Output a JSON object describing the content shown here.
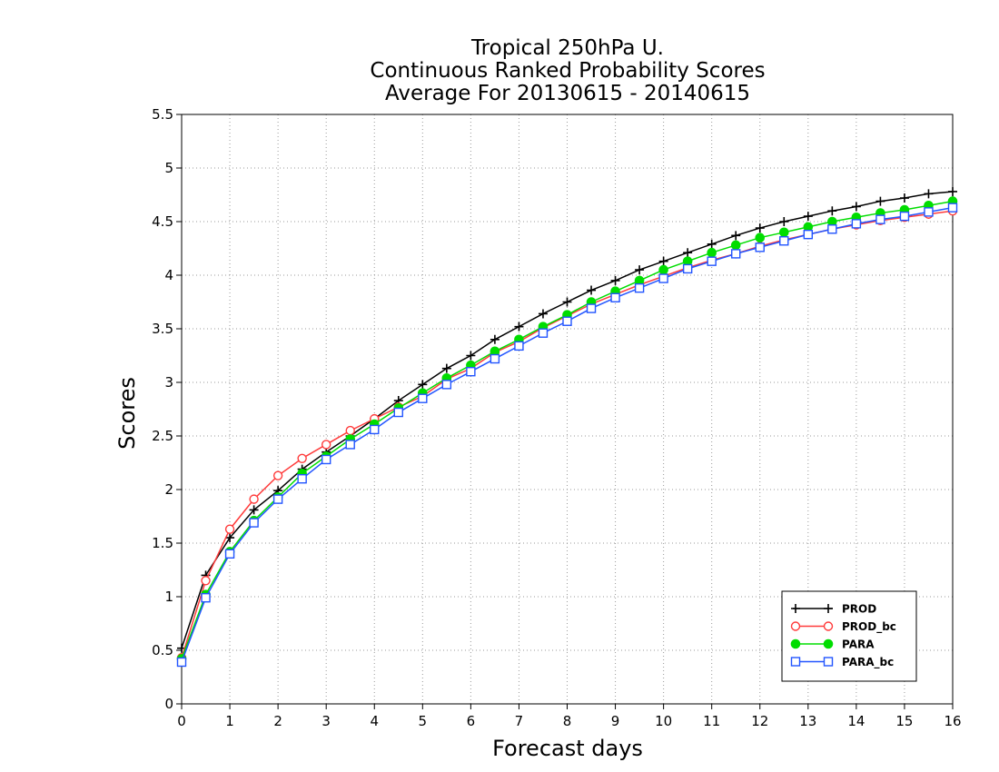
{
  "chart_data": {
    "type": "line",
    "title": [
      "Tropical 250hPa U.",
      "Continuous Ranked Probability Scores",
      "Average For 20130615 - 20140615"
    ],
    "xlabel": "Forecast days",
    "ylabel": "Scores",
    "xlim": [
      0,
      16
    ],
    "ylim": [
      0,
      5.5
    ],
    "xticks": [
      "0",
      "1",
      "2",
      "3",
      "4",
      "5",
      "6",
      "7",
      "8",
      "9",
      "10",
      "11",
      "12",
      "13",
      "14",
      "15",
      "16"
    ],
    "yticks": [
      "0",
      "0.5",
      "1",
      "1.5",
      "2",
      "2.5",
      "3",
      "3.5",
      "4",
      "4.5",
      "5",
      "5.5"
    ],
    "grid": true,
    "legend_position": "bottom-right",
    "x": [
      0,
      0.5,
      1,
      1.5,
      2,
      2.5,
      3,
      3.5,
      4,
      4.5,
      5,
      5.5,
      6,
      6.5,
      7,
      7.5,
      8,
      8.5,
      9,
      9.5,
      10,
      10.5,
      11,
      11.5,
      12,
      12.5,
      13,
      13.5,
      14,
      14.5,
      15,
      15.5,
      16
    ],
    "series": [
      {
        "name": "PROD",
        "color": "#000000",
        "marker": "plus",
        "values": [
          0.52,
          1.2,
          1.55,
          1.81,
          1.99,
          2.19,
          2.35,
          2.5,
          2.66,
          2.83,
          2.98,
          3.13,
          3.25,
          3.4,
          3.52,
          3.64,
          3.75,
          3.86,
          3.95,
          4.05,
          4.13,
          4.21,
          4.29,
          4.37,
          4.44,
          4.5,
          4.55,
          4.6,
          4.64,
          4.69,
          4.72,
          4.76,
          4.78
        ]
      },
      {
        "name": "PROD_bc",
        "color": "#ff3b3b",
        "marker": "circle-open",
        "values": [
          0.43,
          1.15,
          1.63,
          1.91,
          2.13,
          2.29,
          2.42,
          2.55,
          2.66,
          2.77,
          2.87,
          3.03,
          3.13,
          3.28,
          3.38,
          3.51,
          3.62,
          3.73,
          3.82,
          3.91,
          3.99,
          4.07,
          4.14,
          4.2,
          4.27,
          4.33,
          4.38,
          4.43,
          4.47,
          4.51,
          4.54,
          4.57,
          4.6
        ]
      },
      {
        "name": "PARA",
        "color": "#00dd00",
        "marker": "circle-filled",
        "values": [
          0.42,
          1.02,
          1.42,
          1.71,
          1.93,
          2.15,
          2.31,
          2.47,
          2.61,
          2.76,
          2.9,
          3.04,
          3.16,
          3.29,
          3.4,
          3.52,
          3.63,
          3.75,
          3.85,
          3.95,
          4.05,
          4.13,
          4.21,
          4.28,
          4.35,
          4.4,
          4.45,
          4.5,
          4.54,
          4.58,
          4.61,
          4.65,
          4.69
        ]
      },
      {
        "name": "PARA_bc",
        "color": "#2255ff",
        "marker": "square-open",
        "values": [
          0.39,
          0.99,
          1.4,
          1.69,
          1.91,
          2.1,
          2.28,
          2.42,
          2.56,
          2.72,
          2.85,
          2.98,
          3.1,
          3.22,
          3.34,
          3.46,
          3.57,
          3.69,
          3.79,
          3.88,
          3.97,
          4.06,
          4.13,
          4.2,
          4.26,
          4.32,
          4.38,
          4.43,
          4.48,
          4.52,
          4.55,
          4.59,
          4.63
        ]
      }
    ]
  }
}
